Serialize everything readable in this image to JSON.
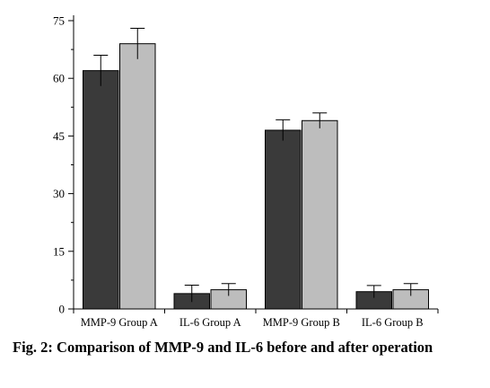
{
  "caption": "Fig. 2: Comparison of MMP-9 and IL-6 before and after operation",
  "chart_data": {
    "type": "bar",
    "categories": [
      "MMP-9 Group A",
      "IL-6 Group A",
      "MMP-9 Group B",
      "IL-6 Group B"
    ],
    "series": [
      {
        "color": "#3a3a3a",
        "values": [
          62,
          4,
          46.5,
          4.5
        ],
        "errors": [
          4,
          2.2,
          2.7,
          1.6
        ]
      },
      {
        "color": "#bdbdbd",
        "values": [
          69,
          5,
          49,
          5
        ],
        "errors": [
          4,
          1.6,
          2,
          1.6
        ]
      }
    ],
    "yticks": [
      0,
      15,
      30,
      45,
      60,
      75
    ],
    "ylim": [
      0,
      75
    ],
    "grid": false,
    "legend": "none"
  }
}
